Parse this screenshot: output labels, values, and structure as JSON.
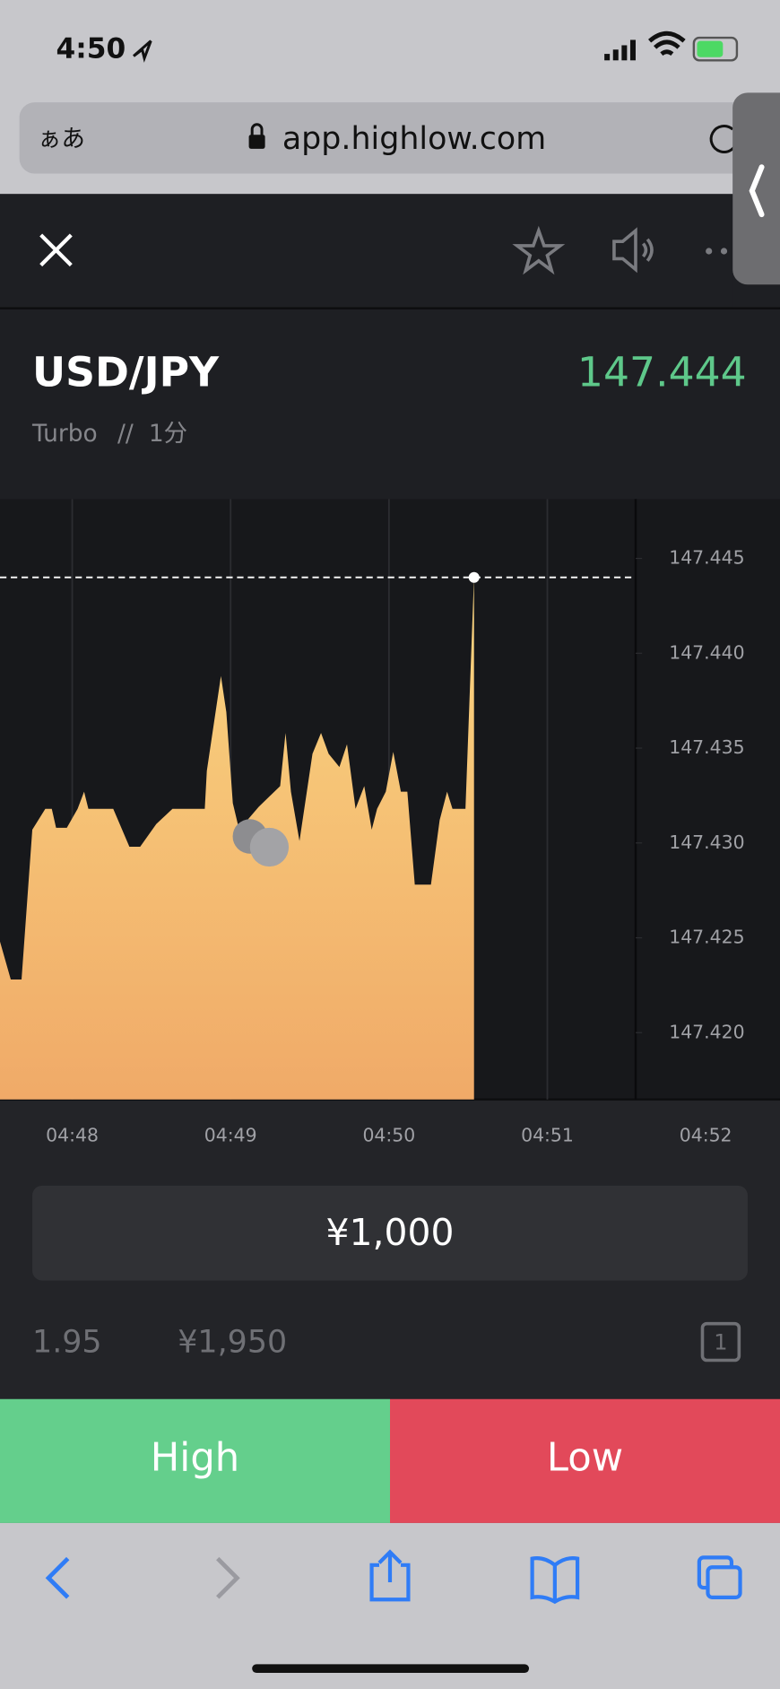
{
  "status_bar": {
    "time": "4:50"
  },
  "browser": {
    "text_size": "ぁあ",
    "url": "app.highlow.com"
  },
  "asset": {
    "name": "USD/JPY",
    "price": "147.444",
    "type": "Turbo",
    "separator": "//",
    "duration": "1分"
  },
  "chart": {
    "type": "area",
    "x": [
      287.544,
      287.612,
      287.68,
      287.748,
      287.83,
      287.871,
      287.898,
      287.966,
      288.034,
      288.075,
      288.102,
      288.259,
      288.361,
      288.429,
      288.531,
      288.633,
      288.837,
      288.85,
      288.939,
      288.973,
      289.014,
      289.054,
      289.177,
      289.313,
      289.347,
      289.381,
      289.435,
      289.517,
      289.571,
      289.619,
      289.687,
      289.735,
      289.789,
      289.844,
      289.891,
      289.925,
      289.98,
      290.027,
      290.075,
      290.116,
      290.163,
      290.265,
      290.32,
      290.367,
      290.401,
      290.483,
      290.537
    ],
    "values": [
      147.4248,
      147.4228,
      147.4228,
      147.4307,
      147.4318,
      147.4318,
      147.4308,
      147.4308,
      147.4318,
      147.4327,
      147.4318,
      147.4318,
      147.4298,
      147.4298,
      147.431,
      147.4318,
      147.4318,
      147.4338,
      147.4388,
      147.4369,
      147.4321,
      147.4307,
      147.4319,
      147.433,
      147.4358,
      147.4327,
      147.4301,
      147.4347,
      147.4358,
      147.4347,
      147.434,
      147.4352,
      147.4318,
      147.433,
      147.4307,
      147.4318,
      147.4327,
      147.4348,
      147.4327,
      147.4327,
      147.4278,
      147.4278,
      147.4312,
      147.4327,
      147.4318,
      147.4318,
      147.444
    ],
    "gradient": [
      "#fad580",
      "#f0aa68"
    ],
    "xlim": [
      287.544,
      292.469
    ],
    "xticks": [
      {
        "value": 288,
        "label": "04:48"
      },
      {
        "value": 289,
        "label": "04:49"
      },
      {
        "value": 290,
        "label": "04:50"
      },
      {
        "value": 291,
        "label": "04:51"
      },
      {
        "value": 292,
        "label": "04:52"
      }
    ],
    "ylim": [
      147.41648,
      147.44813
    ],
    "yticks": [
      147.445,
      {
        "value": 147.44,
        "label": "147.440"
      },
      147.435,
      {
        "value": 147.43,
        "label": "147.430"
      },
      147.425,
      {
        "value": 147.42,
        "label": "147.420"
      }
    ],
    "grid": true
  },
  "trade": {
    "amount": "¥1,000",
    "payout_rate": "1.95",
    "payout": "¥1,950",
    "count": "1"
  },
  "buttons": {
    "high": "High",
    "low": "Low"
  }
}
